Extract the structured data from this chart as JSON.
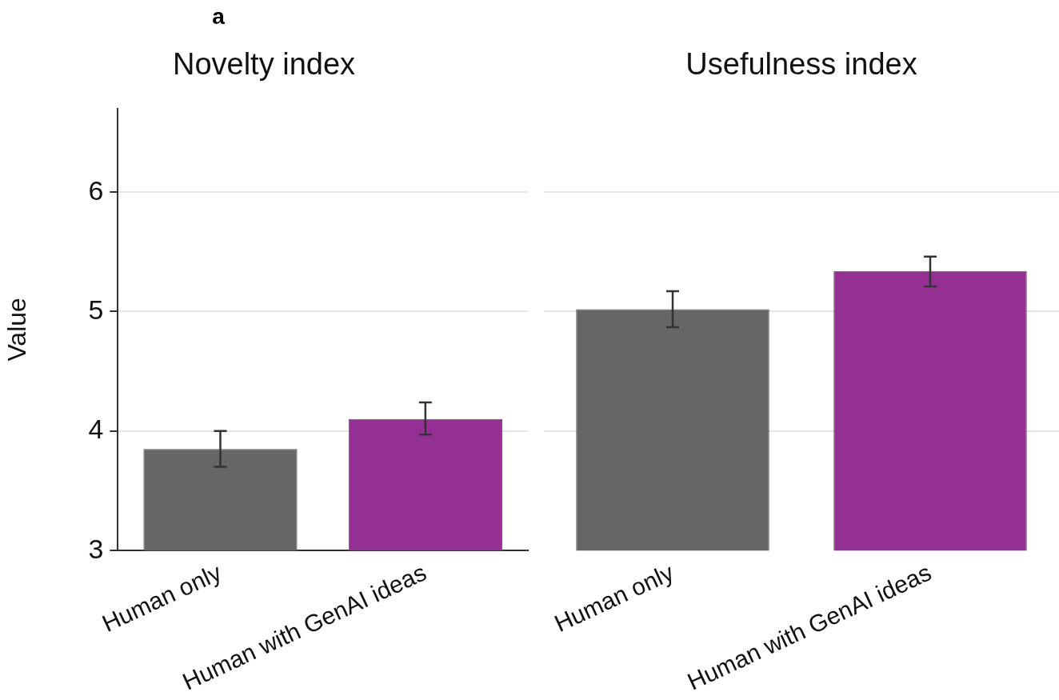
{
  "chart_data": [
    {
      "type": "bar",
      "title": "Novelty index",
      "ylabel": "Value",
      "annotations": [
        "a"
      ],
      "categories": [
        "Human only",
        "Human with GenAI ideas"
      ],
      "values": [
        3.85,
        4.1
      ],
      "colors": [
        "#666666",
        "#943094"
      ],
      "errors": [
        [
          3.7,
          4.0
        ],
        [
          3.97,
          4.24
        ]
      ],
      "ylim": [
        3,
        6.7
      ],
      "yticks": [
        3,
        4,
        5,
        6
      ],
      "grid": "y"
    },
    {
      "type": "bar",
      "title": "Usefulness index",
      "categories": [
        "Human only",
        "Human with GenAI ideas"
      ],
      "values": [
        5.02,
        5.34
      ],
      "colors": [
        "#666666",
        "#943094"
      ],
      "errors": [
        [
          4.87,
          5.17
        ],
        [
          5.21,
          5.46
        ]
      ],
      "yticks": [
        3,
        4,
        5,
        6
      ],
      "grid": "y",
      "tick_labels": "x"
    }
  ]
}
